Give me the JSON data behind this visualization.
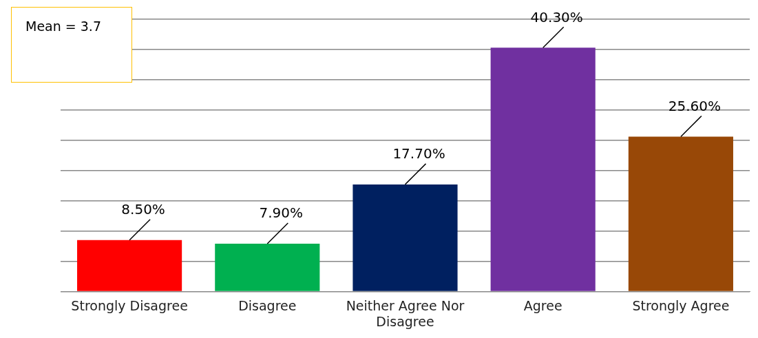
{
  "chart_data": {
    "type": "bar",
    "categories": [
      "Strongly Disagree",
      "Disagree",
      "Neither Agree Nor Disagree",
      "Agree",
      "Strongly Agree"
    ],
    "values": [
      8.5,
      7.9,
      17.7,
      40.3,
      25.6
    ],
    "colors": [
      "#ff0000",
      "#00b050",
      "#002060",
      "#7030a0",
      "#984807"
    ],
    "value_labels": [
      "8.50%",
      "7.90%",
      "17.70%",
      "40.30%",
      "25.60%"
    ],
    "tick_labels": "x",
    "grid": "y",
    "legend": false,
    "annotations": [
      "Mean = 3.7"
    ]
  }
}
